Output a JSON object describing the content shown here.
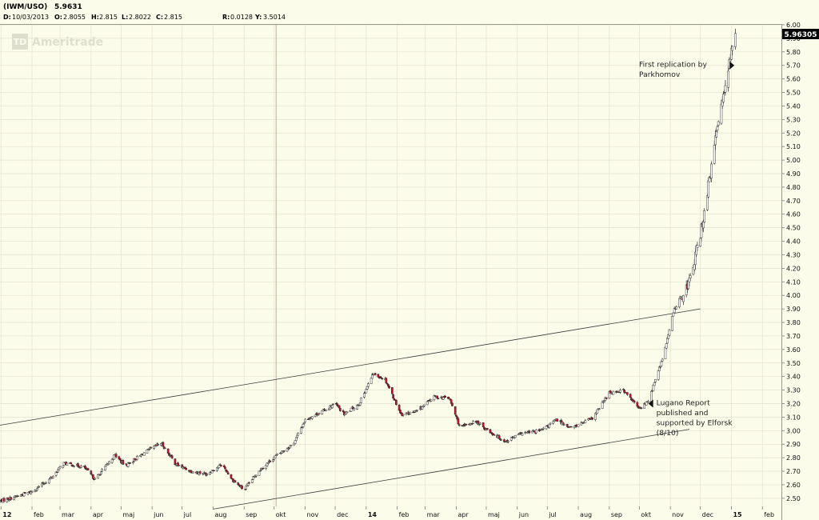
{
  "header": {
    "symbol": "(IWM/USO)",
    "last": "5.9631",
    "date_label": "D:",
    "date": "10/03/2013",
    "open_label": "O:",
    "open": "2.8055",
    "high_label": "H:",
    "high": "2.815",
    "low_label": "L:",
    "low": "2.8022",
    "close_label": "C:",
    "close": "2.815",
    "r_label": "R:",
    "r": "0.0128",
    "y_label": "Y:",
    "y": "3.5014"
  },
  "watermark": "Ameritrade",
  "watermark_logo": "TD",
  "colors": {
    "background": "#fcfcea",
    "up_candle": "#ffffff",
    "down_candle": "#c8102e",
    "grid": "#e2e2cf",
    "price_tag_bg": "#000000",
    "price_tag_text": "#ffffff"
  },
  "chart_data": {
    "type": "candlestick",
    "title": "(IWM/USO)",
    "xlabel": "",
    "ylabel": "",
    "ylim": [
      2.44,
      6.0
    ],
    "x_range": [
      "2012-12-31",
      "2015-02-20"
    ],
    "current_price_label": "5.96305",
    "grid": true,
    "y_ticks": [
      "2.50",
      "2.60",
      "2.70",
      "2.80",
      "2.90",
      "3.00",
      "3.10",
      "3.20",
      "3.30",
      "3.40",
      "3.50",
      "3.60",
      "3.70",
      "3.80",
      "3.90",
      "4.00",
      "4.10",
      "4.20",
      "4.30",
      "4.40",
      "4.50",
      "4.60",
      "4.70",
      "4.80",
      "4.90",
      "5.00",
      "5.10",
      "5.20",
      "5.30",
      "5.40",
      "5.50",
      "5.60",
      "5.70",
      "5.80",
      "5.90",
      "6.00"
    ],
    "x_ticks": [
      {
        "date": "2013-01-01",
        "label": "12",
        "bold": true
      },
      {
        "date": "2013-02-01",
        "label": "feb"
      },
      {
        "date": "2013-03-01",
        "label": "mar"
      },
      {
        "date": "2013-04-01",
        "label": "apr"
      },
      {
        "date": "2013-05-01",
        "label": "maj"
      },
      {
        "date": "2013-06-01",
        "label": "jun"
      },
      {
        "date": "2013-07-01",
        "label": "jul"
      },
      {
        "date": "2013-08-01",
        "label": "aug"
      },
      {
        "date": "2013-09-01",
        "label": "sep"
      },
      {
        "date": "2013-10-01",
        "label": "okt"
      },
      {
        "date": "2013-11-01",
        "label": "nov"
      },
      {
        "date": "2013-12-01",
        "label": "dec"
      },
      {
        "date": "2014-01-01",
        "label": "14",
        "bold": true
      },
      {
        "date": "2014-02-01",
        "label": "feb"
      },
      {
        "date": "2014-03-01",
        "label": "mar"
      },
      {
        "date": "2014-04-01",
        "label": "apr"
      },
      {
        "date": "2014-05-01",
        "label": "maj"
      },
      {
        "date": "2014-06-01",
        "label": "jun"
      },
      {
        "date": "2014-07-01",
        "label": "jul"
      },
      {
        "date": "2014-08-01",
        "label": "aug"
      },
      {
        "date": "2014-09-01",
        "label": "sep"
      },
      {
        "date": "2014-10-01",
        "label": "okt"
      },
      {
        "date": "2014-11-01",
        "label": "nov"
      },
      {
        "date": "2014-12-01",
        "label": "dec"
      },
      {
        "date": "2015-01-01",
        "label": "15",
        "bold": true
      },
      {
        "date": "2015-02-01",
        "label": "feb"
      }
    ],
    "cursor_date": "2013-10-03",
    "price_path": [
      [
        "2012-12-31",
        2.48
      ],
      [
        "2013-01-15",
        2.51
      ],
      [
        "2013-02-01",
        2.55
      ],
      [
        "2013-02-20",
        2.65
      ],
      [
        "2013-03-05",
        2.76
      ],
      [
        "2013-03-25",
        2.73
      ],
      [
        "2013-04-05",
        2.64
      ],
      [
        "2013-04-25",
        2.82
      ],
      [
        "2013-05-05",
        2.74
      ],
      [
        "2013-05-25",
        2.84
      ],
      [
        "2013-06-10",
        2.91
      ],
      [
        "2013-06-25",
        2.75
      ],
      [
        "2013-07-10",
        2.7
      ],
      [
        "2013-07-25",
        2.68
      ],
      [
        "2013-08-10",
        2.75
      ],
      [
        "2013-08-20",
        2.64
      ],
      [
        "2013-09-01",
        2.56
      ],
      [
        "2013-09-15",
        2.7
      ],
      [
        "2013-10-03",
        2.815
      ],
      [
        "2013-10-20",
        2.9
      ],
      [
        "2013-11-01",
        3.08
      ],
      [
        "2013-11-20",
        3.15
      ],
      [
        "2013-12-01",
        3.2
      ],
      [
        "2013-12-10",
        3.12
      ],
      [
        "2013-12-25",
        3.2
      ],
      [
        "2014-01-08",
        3.42
      ],
      [
        "2014-01-20",
        3.38
      ],
      [
        "2014-02-05",
        3.12
      ],
      [
        "2014-02-20",
        3.14
      ],
      [
        "2014-03-10",
        3.25
      ],
      [
        "2014-03-25",
        3.24
      ],
      [
        "2014-04-05",
        3.02
      ],
      [
        "2014-04-20",
        3.07
      ],
      [
        "2014-05-05",
        2.99
      ],
      [
        "2014-05-20",
        2.92
      ],
      [
        "2014-06-05",
        2.98
      ],
      [
        "2014-06-25",
        3.0
      ],
      [
        "2014-07-10",
        3.08
      ],
      [
        "2014-07-25",
        3.02
      ],
      [
        "2014-08-15",
        3.09
      ],
      [
        "2014-09-01",
        3.28
      ],
      [
        "2014-09-15",
        3.3
      ],
      [
        "2014-10-01",
        3.16
      ],
      [
        "2014-10-10",
        3.22
      ],
      [
        "2014-10-25",
        3.55
      ],
      [
        "2014-11-05",
        3.9
      ],
      [
        "2014-11-20",
        4.1
      ],
      [
        "2014-12-01",
        4.45
      ],
      [
        "2014-12-10",
        4.85
      ],
      [
        "2014-12-20",
        5.35
      ],
      [
        "2014-12-28",
        5.65
      ],
      [
        "2015-01-03",
        5.85
      ],
      [
        "2015-01-05",
        5.96
      ]
    ],
    "trendlines": [
      {
        "name": "upper",
        "from": [
          "2012-12-31",
          3.04
        ],
        "to": [
          "2014-12-01",
          3.9
        ]
      },
      {
        "name": "lower",
        "from": [
          "2013-08-01",
          2.42
        ],
        "to": [
          "2014-11-20",
          3.01
        ]
      }
    ],
    "annotations": [
      {
        "id": "lugano",
        "date": "2014-10-10",
        "price": 3.2,
        "lines": [
          "Lugano Report",
          "published and",
          "supported by Elforsk",
          "(8/10)"
        ]
      },
      {
        "id": "parkhomov",
        "date": "2014-12-31",
        "price": 5.7,
        "lines": [
          "First replication by",
          "Parkhomov"
        ]
      }
    ]
  }
}
